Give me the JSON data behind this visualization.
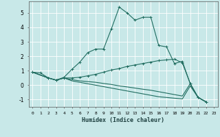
{
  "xlabel": "Humidex (Indice chaleur)",
  "xlim": [
    -0.5,
    23.5
  ],
  "ylim": [
    -1.5,
    5.8
  ],
  "yticks": [
    -1,
    0,
    1,
    2,
    3,
    4,
    5
  ],
  "xticks": [
    0,
    1,
    2,
    3,
    4,
    5,
    6,
    7,
    8,
    9,
    10,
    11,
    12,
    13,
    14,
    15,
    16,
    17,
    18,
    19,
    20,
    21,
    22,
    23
  ],
  "background_color": "#c8e8e8",
  "grid_color": "#ffffff",
  "line_color": "#1e6b5e",
  "line1_x": [
    0,
    1,
    2,
    3,
    4,
    5,
    6,
    7,
    8,
    9,
    10,
    11,
    12,
    13,
    14,
    15,
    16,
    17,
    18,
    19,
    20,
    21,
    22
  ],
  "line1_y": [
    0.9,
    0.85,
    0.5,
    0.35,
    0.55,
    1.1,
    1.6,
    2.25,
    2.5,
    2.5,
    3.9,
    5.4,
    5.0,
    4.5,
    4.7,
    4.7,
    2.75,
    2.65,
    1.5,
    1.65,
    0.1,
    -0.85,
    -1.15
  ],
  "line2_x": [
    0,
    2,
    3,
    4,
    5,
    6,
    7,
    8,
    9,
    10,
    11,
    12,
    13,
    14,
    15,
    16,
    17,
    18,
    19,
    20,
    21,
    22
  ],
  "line2_y": [
    0.9,
    0.5,
    0.35,
    0.5,
    0.5,
    0.55,
    0.65,
    0.75,
    0.9,
    1.05,
    1.15,
    1.3,
    1.4,
    1.5,
    1.6,
    1.7,
    1.75,
    1.8,
    1.55,
    0.12,
    -0.85,
    -1.15
  ],
  "line3_x": [
    0,
    2,
    3,
    4,
    5,
    6,
    7,
    8,
    9,
    10,
    11,
    12,
    13,
    14,
    15,
    16,
    17,
    18,
    19,
    20,
    21,
    22
  ],
  "line3_y": [
    0.9,
    0.5,
    0.35,
    0.5,
    0.38,
    0.3,
    0.25,
    0.2,
    0.12,
    0.05,
    -0.05,
    -0.12,
    -0.2,
    -0.28,
    -0.35,
    -0.45,
    -0.55,
    -0.65,
    -0.75,
    0.1,
    -0.85,
    -1.15
  ],
  "line4_x": [
    0,
    2,
    3,
    4,
    5,
    6,
    7,
    8,
    9,
    10,
    11,
    12,
    13,
    14,
    15,
    16,
    17,
    18,
    19,
    20,
    21,
    22
  ],
  "line4_y": [
    0.9,
    0.5,
    0.35,
    0.5,
    0.3,
    0.2,
    0.1,
    0.0,
    -0.1,
    -0.2,
    -0.3,
    -0.4,
    -0.5,
    -0.6,
    -0.7,
    -0.8,
    -0.85,
    -0.9,
    -0.95,
    -0.05,
    -0.85,
    -1.15
  ]
}
